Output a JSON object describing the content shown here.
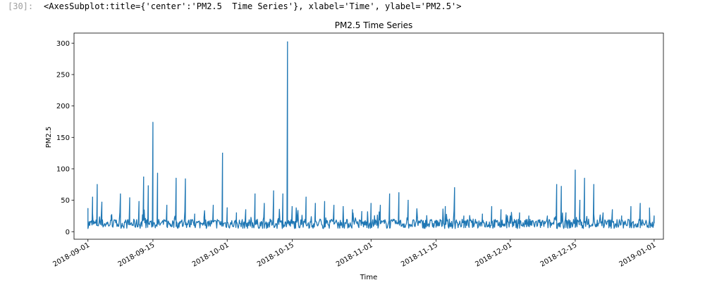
{
  "cell": {
    "prompt": "[30]:",
    "output_repr": "<AxesSubplot:title={'center':'PM2.5  Time Series'}, xlabel='Time', ylabel='PM2.5'>"
  },
  "colors": {
    "line": "#1f77b4",
    "axis": "#000000"
  },
  "chart_data": {
    "type": "line",
    "title": "PM2.5  Time Series",
    "xlabel": "Time",
    "ylabel": "PM2.5",
    "xlim": [
      "2018-08-29",
      "2019-01-03"
    ],
    "ylim": [
      -12,
      316
    ],
    "x_ticks": [
      "2018-09-01",
      "2018-09-15",
      "2018-10-01",
      "2018-10-15",
      "2018-11-01",
      "2018-11-15",
      "2018-12-01",
      "2018-12-15",
      "2019-01-01"
    ],
    "y_ticks": [
      0,
      50,
      100,
      150,
      200,
      250,
      300
    ],
    "grid": false,
    "series": [
      {
        "name": "",
        "x": [
          "2018-09-01",
          "2018-09-02",
          "2018-09-03",
          "2018-09-04",
          "2018-09-05",
          "2018-09-06",
          "2018-09-08",
          "2018-09-10",
          "2018-09-12",
          "2018-09-13",
          "2018-09-14",
          "2018-09-15",
          "2018-09-16",
          "2018-09-18",
          "2018-09-20",
          "2018-09-22",
          "2018-09-24",
          "2018-09-26",
          "2018-09-28",
          "2018-09-30",
          "2018-10-01",
          "2018-10-03",
          "2018-10-05",
          "2018-10-07",
          "2018-10-09",
          "2018-10-11",
          "2018-10-13",
          "2018-10-14",
          "2018-10-15",
          "2018-10-16",
          "2018-10-18",
          "2018-10-20",
          "2018-10-22",
          "2018-10-24",
          "2018-10-26",
          "2018-10-28",
          "2018-10-30",
          "2018-11-01",
          "2018-11-03",
          "2018-11-05",
          "2018-11-07",
          "2018-11-09",
          "2018-11-11",
          "2018-11-13",
          "2018-11-15",
          "2018-11-17",
          "2018-11-19",
          "2018-11-21",
          "2018-11-23",
          "2018-11-25",
          "2018-11-27",
          "2018-11-29",
          "2018-12-01",
          "2018-12-03",
          "2018-12-05",
          "2018-12-07",
          "2018-12-09",
          "2018-12-11",
          "2018-12-12",
          "2018-12-13",
          "2018-12-15",
          "2018-12-16",
          "2018-12-17",
          "2018-12-19",
          "2018-12-21",
          "2018-12-23",
          "2018-12-25",
          "2018-12-27",
          "2018-12-29",
          "2018-12-31",
          "2019-01-01"
        ],
        "y": [
          37,
          55,
          75,
          47,
          12,
          18,
          60,
          54,
          48,
          87,
          73,
          174,
          93,
          42,
          85,
          84,
          28,
          12,
          42,
          125,
          38,
          30,
          35,
          60,
          45,
          65,
          60,
          302,
          40,
          25,
          55,
          45,
          48,
          42,
          40,
          35,
          32,
          45,
          42,
          60,
          62,
          50,
          22,
          25,
          18,
          40,
          70,
          25,
          20,
          28,
          40,
          35,
          25,
          30,
          25,
          18,
          25,
          75,
          72,
          30,
          98,
          50,
          85,
          75,
          30,
          35,
          25,
          40,
          45,
          20,
          25
        ]
      }
    ]
  }
}
